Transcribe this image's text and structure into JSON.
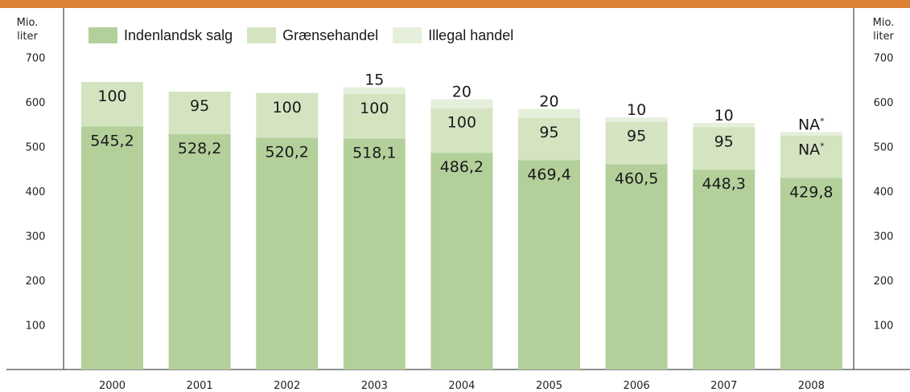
{
  "chart_data": {
    "type": "bar",
    "stacked": true,
    "categories": [
      "2000",
      "2001",
      "2002",
      "2003",
      "2004",
      "2005",
      "2006",
      "2007",
      "2008"
    ],
    "series": [
      {
        "name": "Indenlandsk salg",
        "color": "#b3d09b",
        "values": [
          545.2,
          528.2,
          520.2,
          518.1,
          486.2,
          469.4,
          460.5,
          448.3,
          429.8
        ],
        "labels": [
          "545,2",
          "528,2",
          "520,2",
          "518,1",
          "486,2",
          "469,4",
          "460,5",
          "448,3",
          "429,8"
        ]
      },
      {
        "name": "Grænsehandel",
        "color": "#d4e4c1",
        "values": [
          100,
          95,
          100,
          100,
          100,
          95,
          95,
          95,
          95
        ],
        "labels": [
          "100",
          "95",
          "100",
          "100",
          "100",
          "95",
          "95",
          "95",
          "NA*"
        ]
      },
      {
        "name": "Illegal handel",
        "color": "#e6efdb",
        "values": [
          0,
          0,
          0,
          15,
          20,
          20,
          10,
          10,
          10
        ],
        "labels": [
          null,
          null,
          null,
          "15",
          "20",
          "20",
          "10",
          "10",
          "NA*"
        ]
      }
    ],
    "ylabel_left": "Mio.\nliter",
    "ylabel_right": "Mio.\nliter",
    "yticks": [
      100,
      200,
      300,
      400,
      500,
      600,
      700
    ],
    "ylim": [
      0,
      700
    ],
    "grid": false,
    "legend_position": "top-left"
  }
}
